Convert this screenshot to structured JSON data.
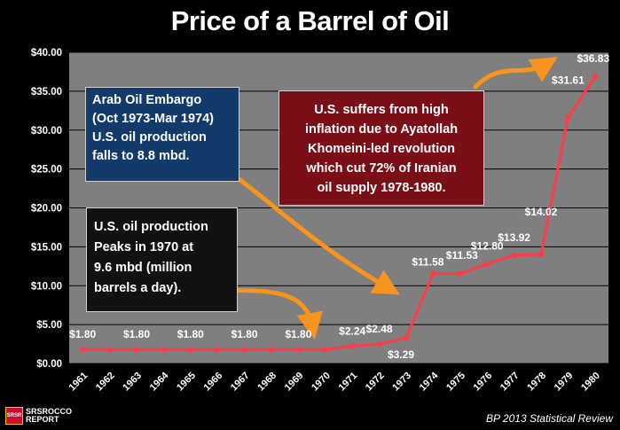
{
  "title": "Price of a Barrel of Oil",
  "source": "BP 2013 Statistical Review",
  "logo": {
    "line1": "SRSrocco",
    "line2": "REPORT",
    "badge": "SRSR"
  },
  "colors": {
    "background": "#000000",
    "plot_background": "#7f7f7f",
    "line": "#ff3b4a",
    "arrow": "#f7941d",
    "embargo_box": "#123a6b",
    "iran_box": "#7b0f17",
    "peak_box": "#121212"
  },
  "notes": {
    "embargo": [
      "Arab Oil Embargo",
      "(Oct 1973-Mar 1974)",
      "U.S. oil production",
      "falls to 8.8 mbd."
    ],
    "iran": [
      "U.S. suffers from high",
      "inflation due to Ayatollah",
      "Khomeini-led revolution",
      "which cut 72% of Iranian",
      "oil supply 1978-1980."
    ],
    "peak": [
      "U.S. oil production",
      "Peaks in 1970 at",
      "9.6 mbd (million",
      "barrels a day)."
    ]
  },
  "chart_data": {
    "type": "line",
    "title": "Price of a Barrel of Oil",
    "xlabel": "",
    "ylabel": "",
    "categories": [
      "1961",
      "1962",
      "1963",
      "1964",
      "1965",
      "1966",
      "1967",
      "1968",
      "1969",
      "1970",
      "1971",
      "1972",
      "1973",
      "1974",
      "1975",
      "1976",
      "1977",
      "1978",
      "1979",
      "1980"
    ],
    "values": [
      1.8,
      1.8,
      1.8,
      1.8,
      1.8,
      1.8,
      1.8,
      1.8,
      1.8,
      1.8,
      2.24,
      2.48,
      3.29,
      11.58,
      11.53,
      12.8,
      13.92,
      14.02,
      31.61,
      36.83
    ],
    "data_labels": [
      {
        "x": "1961",
        "text": "$1.80"
      },
      {
        "x": "1963",
        "text": "$1.80"
      },
      {
        "x": "1965",
        "text": "$1.80"
      },
      {
        "x": "1967",
        "text": "$1.80"
      },
      {
        "x": "1969",
        "text": "$1.80"
      },
      {
        "x": "1971",
        "text": "$2.24"
      },
      {
        "x": "1972",
        "text": "$2.48"
      },
      {
        "x": "1973",
        "text": "$3.29"
      },
      {
        "x": "1974",
        "text": "$11.58"
      },
      {
        "x": "1975",
        "text": "$11.53"
      },
      {
        "x": "1976",
        "text": "$12.80"
      },
      {
        "x": "1977",
        "text": "$13.92"
      },
      {
        "x": "1978",
        "text": "$14.02"
      },
      {
        "x": "1979",
        "text": "$31.61"
      },
      {
        "x": "1980",
        "text": "$36.83"
      }
    ],
    "ylim": [
      0,
      40
    ],
    "yticks": [
      0,
      5,
      10,
      15,
      20,
      25,
      30,
      35,
      40
    ],
    "ytick_labels": [
      "$0.00",
      "$5.00",
      "$10.00",
      "$15.00",
      "$20.00",
      "$25.00",
      "$30.00",
      "$35.00",
      "$40.00"
    ],
    "grid": "horizontal",
    "legend": "none"
  }
}
